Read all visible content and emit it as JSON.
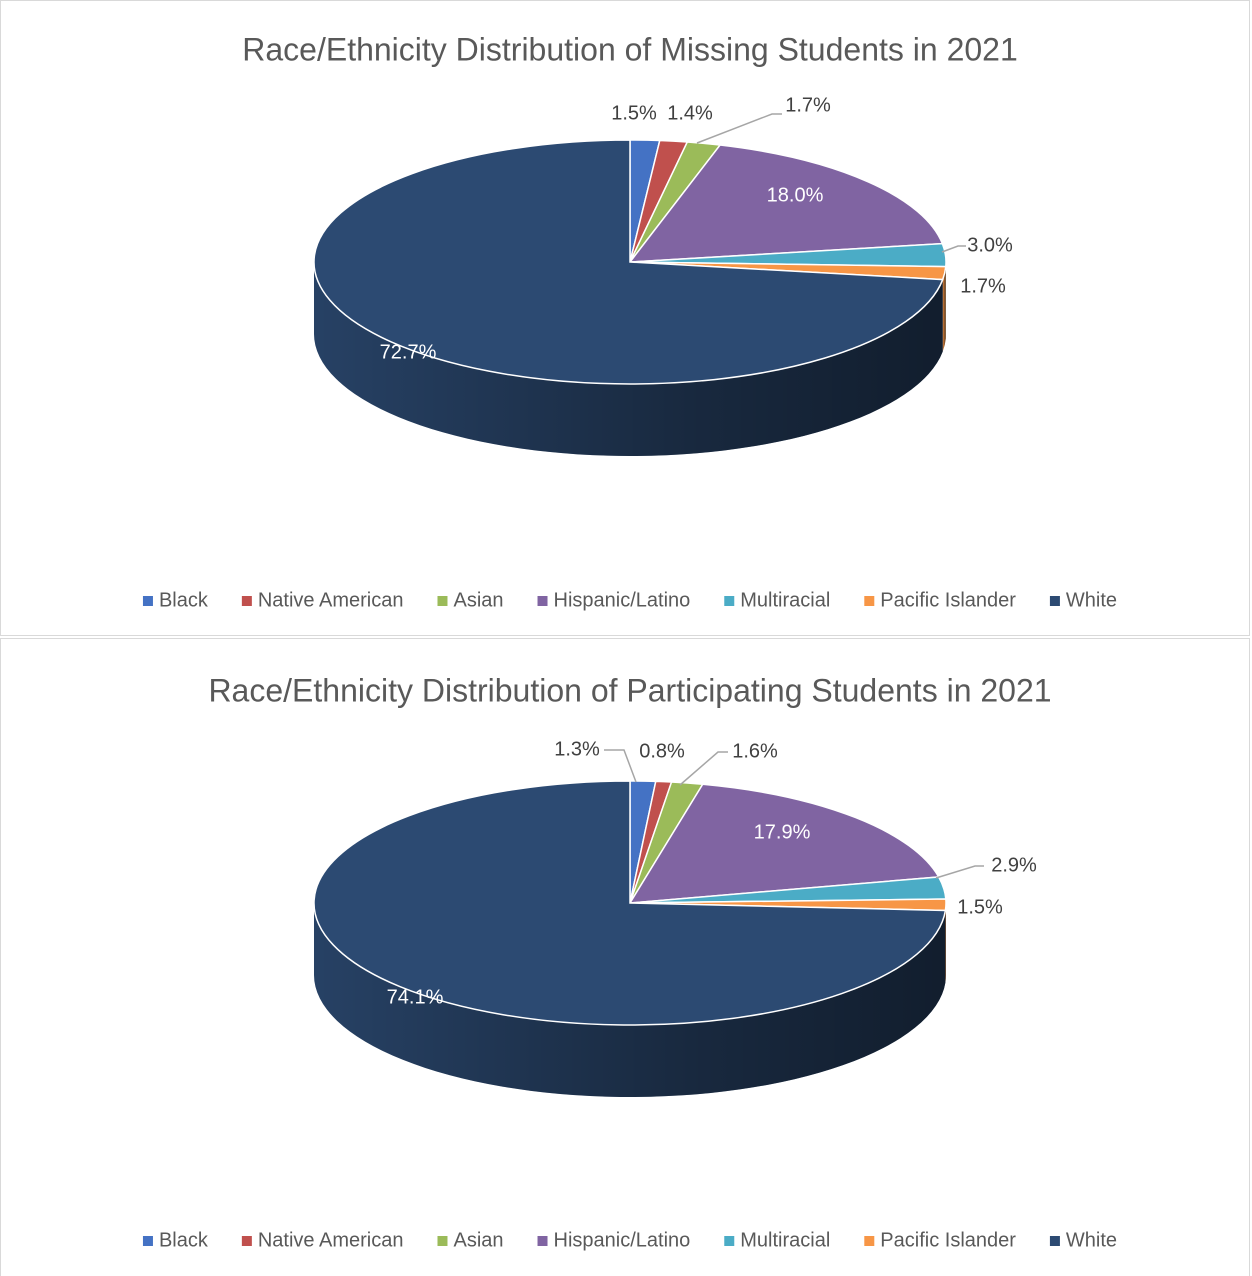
{
  "chart_data": [
    {
      "type": "pie3d",
      "title": "Race/Ethnicity Distribution of Missing Students in 2021",
      "categories": [
        "Black",
        "Native American",
        "Asian",
        "Hispanic/Latino",
        "Multiracial",
        "Pacific Islander",
        "White"
      ],
      "values": [
        1.5,
        1.4,
        1.7,
        18.0,
        3.0,
        1.7,
        72.7
      ],
      "value_labels": [
        "1.5%",
        "1.4%",
        "1.7%",
        "18.0%",
        "3.0%",
        "1.7%",
        "72.7%"
      ],
      "colors": [
        "#4472c4",
        "#c0504d",
        "#9bbb59",
        "#8064a2",
        "#4bacc6",
        "#f79646",
        "#2c4a72"
      ],
      "legend": "bottom"
    },
    {
      "type": "pie3d",
      "title": "Race/Ethnicity Distribution of Participating Students in 2021",
      "categories": [
        "Black",
        "Native American",
        "Asian",
        "Hispanic/Latino",
        "Multiracial",
        "Pacific Islander",
        "White"
      ],
      "values": [
        1.3,
        0.8,
        1.6,
        17.9,
        2.9,
        1.5,
        74.1
      ],
      "value_labels": [
        "1.3%",
        "0.8%",
        "1.6%",
        "17.9%",
        "2.9%",
        "1.5%",
        "74.1%"
      ],
      "colors": [
        "#4472c4",
        "#c0504d",
        "#9bbb59",
        "#8064a2",
        "#4bacc6",
        "#f79646",
        "#2c4a72"
      ],
      "legend": "bottom"
    }
  ]
}
